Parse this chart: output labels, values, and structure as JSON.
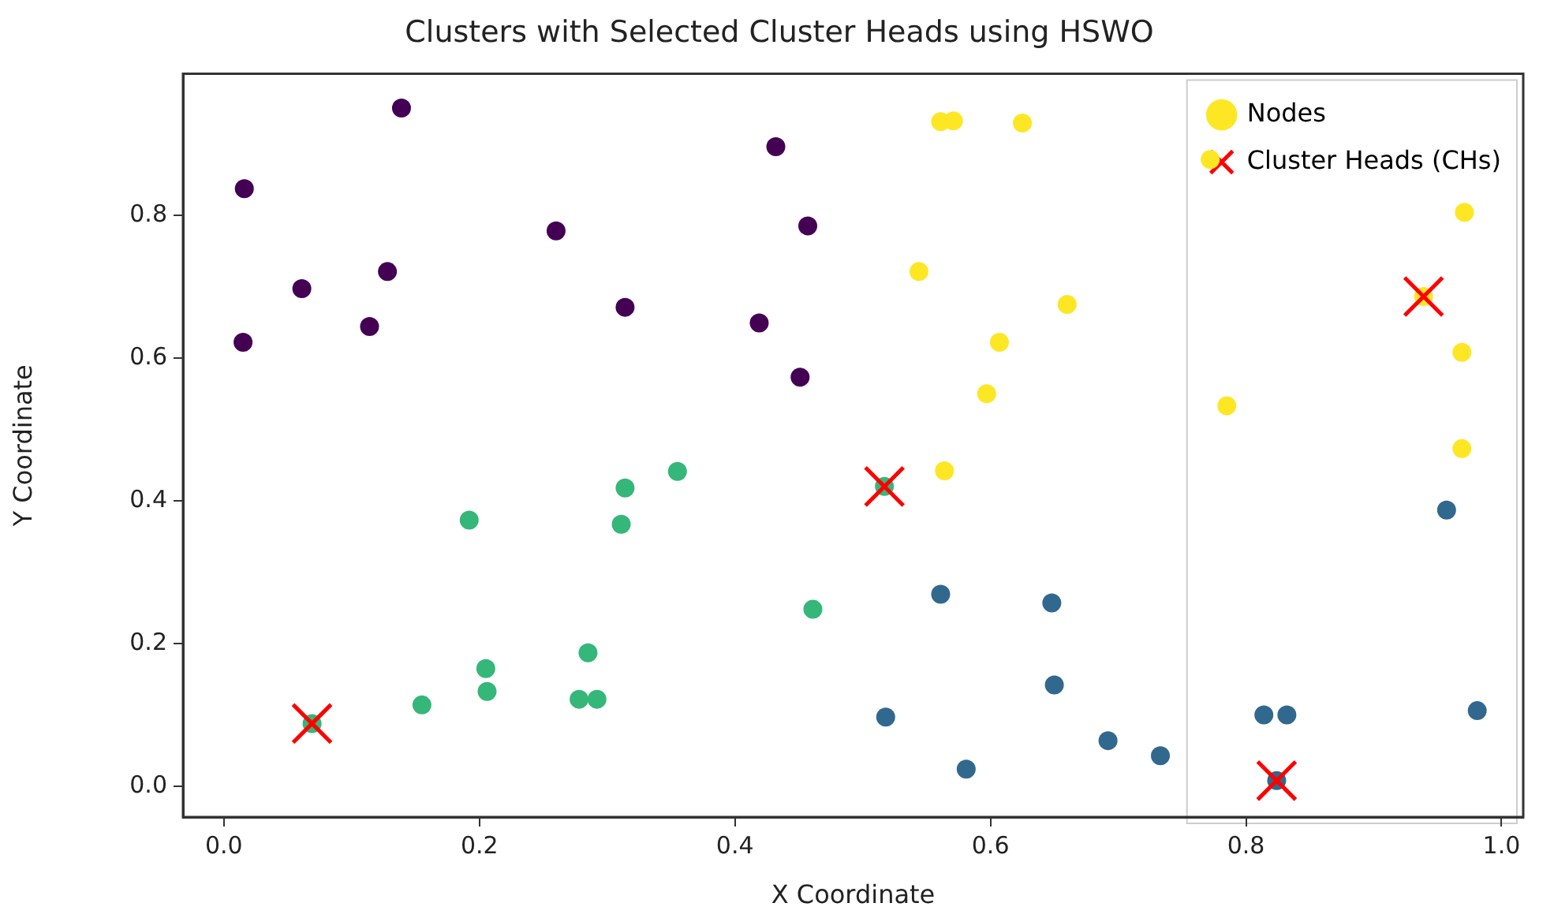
{
  "chart_data": {
    "type": "scatter",
    "title": "Clusters with Selected Cluster Heads using HSWO",
    "xlabel": "X Coordinate",
    "ylabel": "Y Coordinate",
    "xlim": [
      -0.032,
      1.017
    ],
    "ylim": [
      -0.043,
      0.998
    ],
    "xticks": [
      {
        "value": 0,
        "label": "0.0"
      },
      0.2,
      0.4,
      0.6,
      0.8,
      {
        "value": 1,
        "label": "1.0"
      }
    ],
    "yticks": [
      {
        "value": 0,
        "label": "0.0"
      },
      0.2,
      0.4,
      0.6,
      0.8
    ],
    "grid": false,
    "legend": "top right",
    "series": [
      {
        "name": "Nodes",
        "type": "scatter",
        "marker": "circle",
        "color": "#fde725",
        "x": [
          0.016,
          0.139,
          0.061,
          0.128,
          0.114,
          0.015,
          0.26,
          0.314,
          0.419,
          0.432,
          0.457,
          0.451,
          0.561,
          0.571,
          0.625,
          0.772,
          0.971,
          0.939,
          0.969,
          0.544,
          0.66,
          0.607,
          0.597,
          0.785,
          0.969,
          0.564,
          0.192,
          0.314,
          0.311,
          0.355,
          0.517,
          0.461,
          0.155,
          0.205,
          0.206,
          0.285,
          0.278,
          0.292,
          0.069,
          0.957,
          0.561,
          0.648,
          0.65,
          0.518,
          0.814,
          0.832,
          0.981,
          0.692,
          0.733,
          0.581,
          0.824
        ],
        "values": [
          0.837,
          0.95,
          0.697,
          0.721,
          0.644,
          0.622,
          0.778,
          0.671,
          0.649,
          0.896,
          0.785,
          0.573,
          0.931,
          0.932,
          0.929,
          0.878,
          0.804,
          0.686,
          0.608,
          0.721,
          0.675,
          0.622,
          0.55,
          0.533,
          0.473,
          0.442,
          0.373,
          0.418,
          0.367,
          0.441,
          0.42,
          0.248,
          0.114,
          0.165,
          0.133,
          0.187,
          0.122,
          0.122,
          0.088,
          0.387,
          0.269,
          0.257,
          0.142,
          0.097,
          0.1,
          0.1,
          0.106,
          0.064,
          0.043,
          0.024,
          0.008
        ],
        "colors": [
          "#440154",
          "#440154",
          "#440154",
          "#440154",
          "#440154",
          "#440154",
          "#440154",
          "#440154",
          "#440154",
          "#440154",
          "#440154",
          "#440154",
          "#fde725",
          "#fde725",
          "#fde725",
          "#fde725",
          "#fde725",
          "#fde725",
          "#fde725",
          "#fde725",
          "#fde725",
          "#fde725",
          "#fde725",
          "#fde725",
          "#fde725",
          "#fde725",
          "#35b779",
          "#35b779",
          "#35b779",
          "#35b779",
          "#35b779",
          "#35b779",
          "#35b779",
          "#35b779",
          "#35b779",
          "#35b779",
          "#35b779",
          "#35b779",
          "#35b779",
          "#31688e",
          "#31688e",
          "#31688e",
          "#31688e",
          "#31688e",
          "#31688e",
          "#31688e",
          "#31688e",
          "#31688e",
          "#31688e",
          "#31688e",
          "#31688e"
        ]
      },
      {
        "name": "Cluster Heads (CHs)",
        "type": "scatter",
        "marker": "cross",
        "color": "#ff0000",
        "x": [
          0.069,
          0.517,
          0.824,
          0.939
        ],
        "values": [
          0.088,
          0.42,
          0.008,
          0.686
        ]
      }
    ]
  }
}
